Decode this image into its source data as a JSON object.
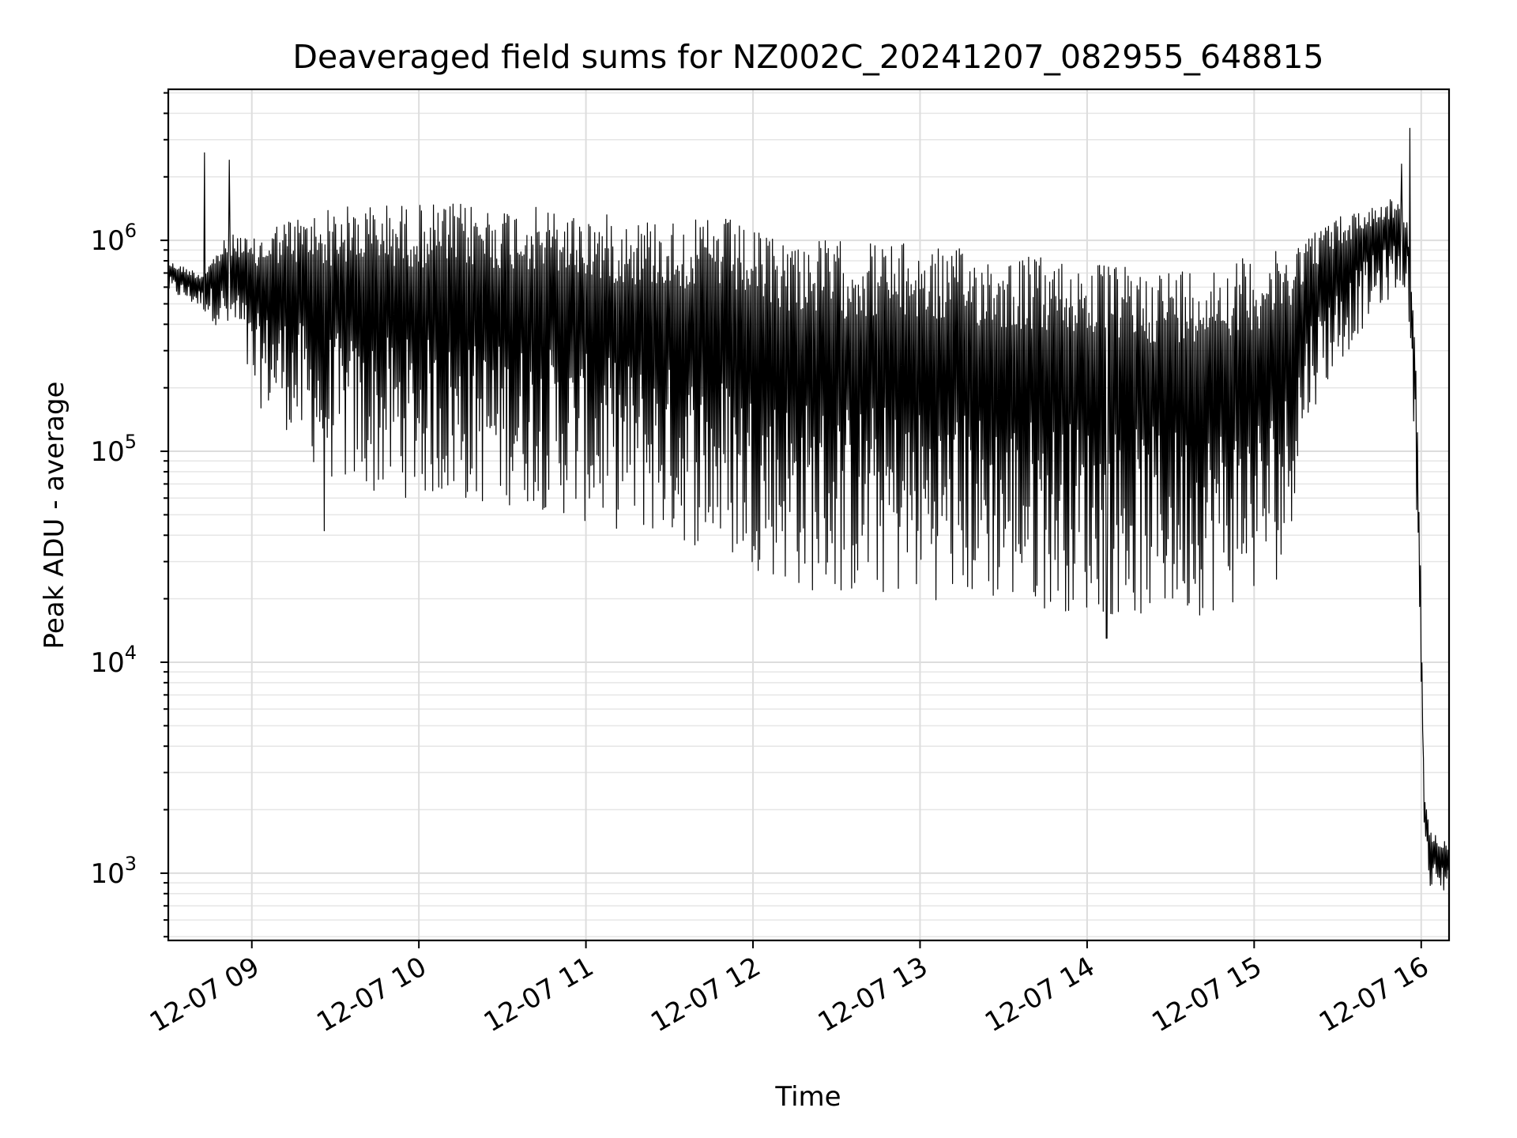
{
  "chart_data": {
    "type": "line",
    "title": "Deaveraged field sums for NZ002C_20241207_082955_648815",
    "xlabel": "Time",
    "ylabel": "Peak ADU - average",
    "yscale": "log",
    "x_ticks": [
      {
        "value": "2024-12-07T09:00:00",
        "label": "12-07 09"
      },
      {
        "value": "2024-12-07T10:00:00",
        "label": "12-07 10"
      },
      {
        "value": "2024-12-07T11:00:00",
        "label": "12-07 11"
      },
      {
        "value": "2024-12-07T12:00:00",
        "label": "12-07 12"
      },
      {
        "value": "2024-12-07T13:00:00",
        "label": "12-07 13"
      },
      {
        "value": "2024-12-07T14:00:00",
        "label": "12-07 14"
      },
      {
        "value": "2024-12-07T15:00:00",
        "label": "12-07 15"
      },
      {
        "value": "2024-12-07T16:00:00",
        "label": "12-07 16"
      }
    ],
    "y_ticks": [
      {
        "value": 1000,
        "base": "10",
        "exp": "3"
      },
      {
        "value": 10000,
        "base": "10",
        "exp": "4"
      },
      {
        "value": 100000,
        "base": "10",
        "exp": "5"
      },
      {
        "value": 1000000,
        "base": "10",
        "exp": "6"
      }
    ],
    "xlim": [
      "2024-12-07T08:30:00",
      "2024-12-07T16:10:00"
    ],
    "ylim": [
      480,
      5200000
    ],
    "grid": true,
    "grid_minor": true,
    "series": [
      {
        "color": "#000000",
        "envelope": [
          {
            "x": "2024-12-07T08:30:00",
            "low": 560000,
            "high": 800000
          },
          {
            "x": "2024-12-07T08:42:00",
            "low": 470000,
            "high": 700000
          },
          {
            "x": "2024-12-07T08:50:00",
            "low": 360000,
            "high": 1000000
          },
          {
            "x": "2024-12-07T08:55:00",
            "low": 330000,
            "high": 1100000
          },
          {
            "x": "2024-12-07T09:00:00",
            "low": 170000,
            "high": 1000000
          },
          {
            "x": "2024-12-07T09:10:00",
            "low": 140000,
            "high": 1250000
          },
          {
            "x": "2024-12-07T09:20:00",
            "low": 90000,
            "high": 1350000
          },
          {
            "x": "2024-12-07T09:30:00",
            "low": 70000,
            "high": 1450000
          },
          {
            "x": "2024-12-07T09:45:00",
            "low": 60000,
            "high": 1500000
          },
          {
            "x": "2024-12-07T10:00:00",
            "low": 60000,
            "high": 1500000
          },
          {
            "x": "2024-12-07T10:20:00",
            "low": 55000,
            "high": 1500000
          },
          {
            "x": "2024-12-07T10:40:00",
            "low": 55000,
            "high": 1450000
          },
          {
            "x": "2024-12-07T11:00:00",
            "low": 45000,
            "high": 1350000
          },
          {
            "x": "2024-12-07T11:20:00",
            "low": 40000,
            "high": 1300000
          },
          {
            "x": "2024-12-07T11:40:00",
            "low": 35000,
            "high": 1250000
          },
          {
            "x": "2024-12-07T11:50:00",
            "low": 30000,
            "high": 1300000
          },
          {
            "x": "2024-12-07T12:00:00",
            "low": 28000,
            "high": 1100000
          },
          {
            "x": "2024-12-07T12:15:00",
            "low": 22000,
            "high": 1050000
          },
          {
            "x": "2024-12-07T12:30:00",
            "low": 20000,
            "high": 1000000
          },
          {
            "x": "2024-12-07T12:45:00",
            "low": 20000,
            "high": 1000000
          },
          {
            "x": "2024-12-07T13:00:00",
            "low": 20000,
            "high": 950000
          },
          {
            "x": "2024-12-07T13:20:00",
            "low": 19000,
            "high": 900000
          },
          {
            "x": "2024-12-07T13:40:00",
            "low": 18000,
            "high": 850000
          },
          {
            "x": "2024-12-07T14:00:00",
            "low": 17000,
            "high": 800000
          },
          {
            "x": "2024-12-07T14:15:00",
            "low": 16000,
            "high": 750000
          },
          {
            "x": "2024-12-07T14:30:00",
            "low": 16000,
            "high": 750000
          },
          {
            "x": "2024-12-07T14:45:00",
            "low": 17000,
            "high": 780000
          },
          {
            "x": "2024-12-07T15:00:00",
            "low": 20000,
            "high": 850000
          },
          {
            "x": "2024-12-07T15:10:00",
            "low": 25000,
            "high": 900000
          },
          {
            "x": "2024-12-07T15:20:00",
            "low": 150000,
            "high": 1100000
          },
          {
            "x": "2024-12-07T15:30:00",
            "low": 250000,
            "high": 1300000
          },
          {
            "x": "2024-12-07T15:40:00",
            "low": 400000,
            "high": 1450000
          },
          {
            "x": "2024-12-07T15:50:00",
            "low": 550000,
            "high": 1600000
          },
          {
            "x": "2024-12-07T15:55:00",
            "low": 600000,
            "high": 1300000
          },
          {
            "x": "2024-12-07T15:58:00",
            "low": 80000,
            "high": 300000
          },
          {
            "x": "2024-12-07T16:00:00",
            "low": 8000,
            "high": 20000
          },
          {
            "x": "2024-12-07T16:01:00",
            "low": 1800,
            "high": 2400
          },
          {
            "x": "2024-12-07T16:03:00",
            "low": 750,
            "high": 1600
          },
          {
            "x": "2024-12-07T16:08:00",
            "low": 800,
            "high": 1500
          },
          {
            "x": "2024-12-07T16:10:00",
            "low": 900,
            "high": 1300
          }
        ],
        "spikes": [
          {
            "x": "2024-12-07T08:43:00",
            "value": 2600000
          },
          {
            "x": "2024-12-07T08:52:00",
            "value": 2400000
          },
          {
            "x": "2024-12-07T09:26:00",
            "value": 42000
          },
          {
            "x": "2024-12-07T14:07:00",
            "value": 13000
          },
          {
            "x": "2024-12-07T15:53:00",
            "value": 2300000
          },
          {
            "x": "2024-12-07T15:56:00",
            "value": 3400000
          }
        ]
      }
    ]
  }
}
